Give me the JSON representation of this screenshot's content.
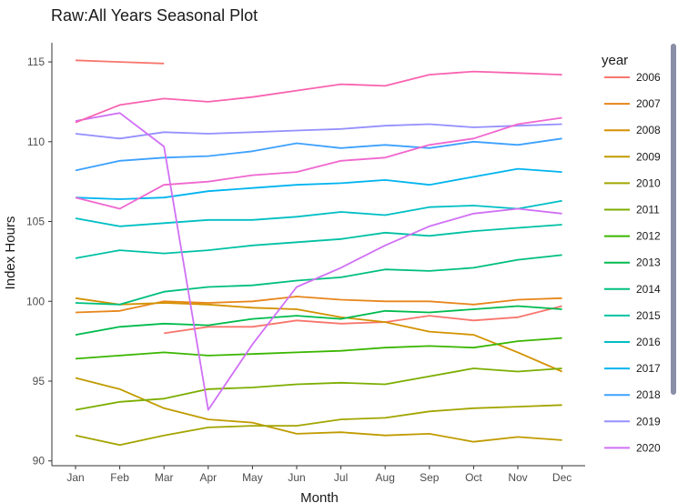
{
  "chart_data": {
    "type": "line",
    "title": "Raw:All Years Seasonal Plot",
    "xlabel": "Month",
    "ylabel": "Index Hours",
    "categories": [
      "Jan",
      "Feb",
      "Mar",
      "Apr",
      "May",
      "Jun",
      "Jul",
      "Aug",
      "Sep",
      "Oct",
      "Nov",
      "Dec"
    ],
    "yticks": [
      90,
      95,
      100,
      105,
      110,
      115
    ],
    "ylim": [
      89.7,
      116.2
    ],
    "grid": false,
    "legend_title": "year",
    "legend_position": "right",
    "series": [
      {
        "name": "2006",
        "color": "#F8766D",
        "values": [
          null,
          null,
          98.0,
          98.4,
          98.4,
          98.8,
          98.6,
          98.7,
          99.1,
          98.8,
          99.0,
          99.7
        ]
      },
      {
        "name": "2006",
        "color": "#F8766D",
        "values": [
          115.1,
          115.0,
          114.9,
          null,
          null,
          null,
          null,
          null,
          null,
          null,
          null,
          null
        ]
      },
      {
        "name": "2007",
        "color": "#E7861B",
        "values": [
          99.3,
          99.4,
          100.0,
          99.9,
          100.0,
          100.3,
          100.1,
          100.0,
          100.0,
          99.8,
          100.1,
          100.2
        ]
      },
      {
        "name": "2008",
        "color": "#D39200",
        "values": [
          100.2,
          99.8,
          99.9,
          99.8,
          99.6,
          99.5,
          99.0,
          98.7,
          98.1,
          97.9,
          96.8,
          95.6
        ]
      },
      {
        "name": "2009",
        "color": "#C09B00",
        "values": [
          95.2,
          94.5,
          93.3,
          92.6,
          92.4,
          91.7,
          91.8,
          91.6,
          91.7,
          91.2,
          91.5,
          91.3
        ]
      },
      {
        "name": "2010",
        "color": "#A3A500",
        "values": [
          91.6,
          91.0,
          91.6,
          92.1,
          92.2,
          92.2,
          92.6,
          92.7,
          93.1,
          93.3,
          93.4,
          93.5
        ]
      },
      {
        "name": "2011",
        "color": "#7CAE00",
        "values": [
          93.2,
          93.7,
          93.9,
          94.5,
          94.6,
          94.8,
          94.9,
          94.8,
          95.3,
          95.8,
          95.6,
          95.8
        ]
      },
      {
        "name": "2012",
        "color": "#39B600",
        "values": [
          96.4,
          96.6,
          96.8,
          96.6,
          96.7,
          96.8,
          96.9,
          97.1,
          97.2,
          97.1,
          97.5,
          97.7
        ]
      },
      {
        "name": "2013",
        "color": "#00BB4E",
        "values": [
          97.9,
          98.4,
          98.6,
          98.5,
          98.9,
          99.1,
          98.9,
          99.4,
          99.3,
          99.5,
          99.7,
          99.5
        ]
      },
      {
        "name": "2014",
        "color": "#00BF7D",
        "values": [
          99.9,
          99.8,
          100.6,
          100.9,
          101.0,
          101.3,
          101.5,
          102.0,
          101.9,
          102.1,
          102.6,
          102.9
        ]
      },
      {
        "name": "2015",
        "color": "#00C1A3",
        "values": [
          102.7,
          103.2,
          103.0,
          103.2,
          103.5,
          103.7,
          103.9,
          104.3,
          104.1,
          104.4,
          104.6,
          104.8
        ]
      },
      {
        "name": "2016",
        "color": "#00BFC4",
        "values": [
          105.2,
          104.7,
          104.9,
          105.1,
          105.1,
          105.3,
          105.6,
          105.4,
          105.9,
          106.0,
          105.8,
          106.3
        ]
      },
      {
        "name": "2017",
        "color": "#00B4EF",
        "values": [
          106.5,
          106.4,
          106.5,
          106.9,
          107.1,
          107.3,
          107.4,
          107.6,
          107.3,
          107.8,
          108.3,
          108.1
        ]
      },
      {
        "name": "2018",
        "color": "#3DA1FF",
        "values": [
          108.2,
          108.8,
          109.0,
          109.1,
          109.4,
          109.9,
          109.6,
          109.8,
          109.6,
          110.0,
          109.8,
          110.2
        ]
      },
      {
        "name": "2019",
        "color": "#9590FF",
        "values": [
          110.5,
          110.2,
          110.6,
          110.5,
          110.6,
          110.7,
          110.8,
          111.0,
          111.1,
          110.9,
          111.0,
          111.1
        ]
      },
      {
        "name": "2020",
        "color": "#D070F5",
        "values": [
          111.3,
          111.8,
          109.7,
          93.2,
          97.3,
          100.9,
          102.1,
          103.5,
          104.7,
          105.5,
          105.8,
          105.5
        ]
      },
      {
        "name": "2020",
        "color": "#F067CF",
        "values": [
          106.5,
          105.8,
          107.3,
          107.5,
          107.9,
          108.1,
          108.8,
          109.0,
          109.8,
          110.2,
          111.1,
          111.5
        ]
      },
      {
        "name": "2020",
        "color": "#F863B0",
        "values": [
          111.2,
          112.3,
          112.7,
          112.5,
          112.8,
          113.2,
          113.6,
          113.5,
          114.2,
          114.4,
          114.3,
          114.2
        ]
      }
    ],
    "legend": [
      {
        "label": "2006",
        "color": "#F8766D"
      },
      {
        "label": "2007",
        "color": "#E7861B"
      },
      {
        "label": "2008",
        "color": "#D39200"
      },
      {
        "label": "2009",
        "color": "#C09B00"
      },
      {
        "label": "2010",
        "color": "#A3A500"
      },
      {
        "label": "2011",
        "color": "#7CAE00"
      },
      {
        "label": "2012",
        "color": "#39B600"
      },
      {
        "label": "2013",
        "color": "#00BB4E"
      },
      {
        "label": "2014",
        "color": "#00BF7D"
      },
      {
        "label": "2015",
        "color": "#00C1A3"
      },
      {
        "label": "2016",
        "color": "#00BFC4"
      },
      {
        "label": "2017",
        "color": "#00B4EF"
      },
      {
        "label": "2018",
        "color": "#3DA1FF"
      },
      {
        "label": "2019",
        "color": "#9590FF"
      },
      {
        "label": "2020",
        "color": "#D070F5"
      }
    ]
  }
}
